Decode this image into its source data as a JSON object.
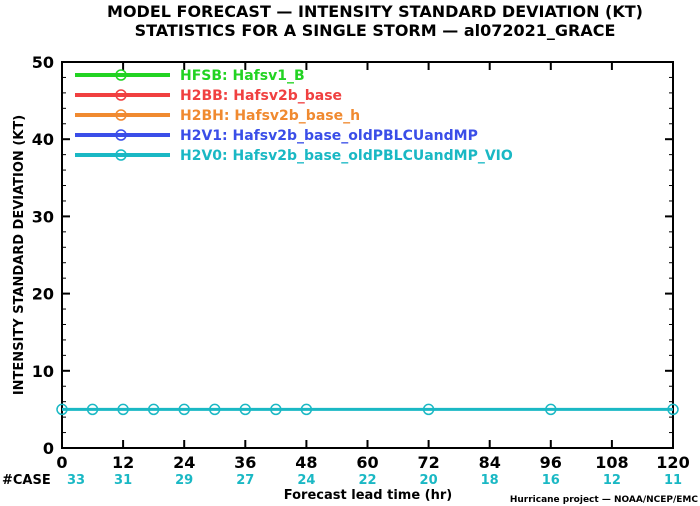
{
  "title": {
    "line1": "MODEL FORECAST — INTENSITY STANDARD DEVIATION (KT)",
    "line2": "STATISTICS FOR A SINGLE STORM — al072021_GRACE"
  },
  "credit": "Hurricane project — NOAA/NCEP/EMC",
  "count_label": "#CASE",
  "count_color": "#1ab8c4",
  "chart_data": {
    "type": "line",
    "title": "MODEL FORECAST — INTENSITY STANDARD DEVIATION (KT)",
    "subtitle": "STATISTICS FOR A SINGLE STORM — al072021_GRACE",
    "xlabel": "Forecast lead time (hr)",
    "ylabel": "INTENSITY STANDARD DEVIATION (KT)",
    "xlim": [
      0,
      120
    ],
    "ylim": [
      0,
      50
    ],
    "xticks": [
      0,
      12,
      24,
      36,
      48,
      60,
      72,
      84,
      96,
      108,
      120
    ],
    "yticks": [
      0,
      10,
      20,
      30,
      40,
      50
    ],
    "legend_position": "top-left",
    "grid": false,
    "case_counts": [
      {
        "x": 0,
        "n": "33"
      },
      {
        "x": 12,
        "n": "31"
      },
      {
        "x": 24,
        "n": "29"
      },
      {
        "x": 36,
        "n": "27"
      },
      {
        "x": 48,
        "n": "24"
      },
      {
        "x": 60,
        "n": "22"
      },
      {
        "x": 72,
        "n": "20"
      },
      {
        "x": 84,
        "n": "18"
      },
      {
        "x": 96,
        "n": "16"
      },
      {
        "x": 108,
        "n": "12"
      },
      {
        "x": 120,
        "n": "11"
      }
    ],
    "series": [
      {
        "name": "HFSB: Hafsv1_B",
        "color": "#22d322",
        "x": [],
        "y": []
      },
      {
        "name": "H2BB: Hafsv2b_base",
        "color": "#f04040",
        "x": [],
        "y": []
      },
      {
        "name": "H2BH: Hafsv2b_base_h",
        "color": "#f08a30",
        "x": [],
        "y": []
      },
      {
        "name": "H2V1: Hafsv2b_base_oldPBLCUandMP",
        "color": "#3a4ee8",
        "x": [],
        "y": []
      },
      {
        "name": "H2V0: Hafsv2b_base_oldPBLCUandMP_VIO",
        "color": "#1ab8c4",
        "x": [
          0,
          6,
          12,
          18,
          24,
          30,
          36,
          42,
          48,
          72,
          96,
          120
        ],
        "y": [
          5,
          5,
          5,
          5,
          5,
          5,
          5,
          5,
          5,
          5,
          5,
          5
        ]
      }
    ]
  }
}
